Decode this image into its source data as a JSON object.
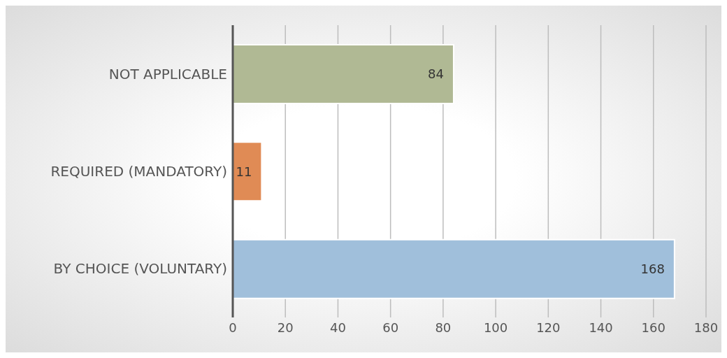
{
  "chart_data": {
    "type": "bar",
    "orientation": "horizontal",
    "categories": [
      "NOT APPLICABLE",
      "REQUIRED (MANDATORY)",
      "BY CHOICE (VOLUNTARY)"
    ],
    "values": [
      84,
      11,
      168
    ],
    "colors": [
      "#b0b994",
      "#e08b55",
      "#a0bfdb"
    ],
    "xlim": [
      0,
      180
    ],
    "xticks": [
      0,
      20,
      40,
      60,
      80,
      100,
      120,
      140,
      160,
      180
    ],
    "grid": "x",
    "data_labels": true
  }
}
